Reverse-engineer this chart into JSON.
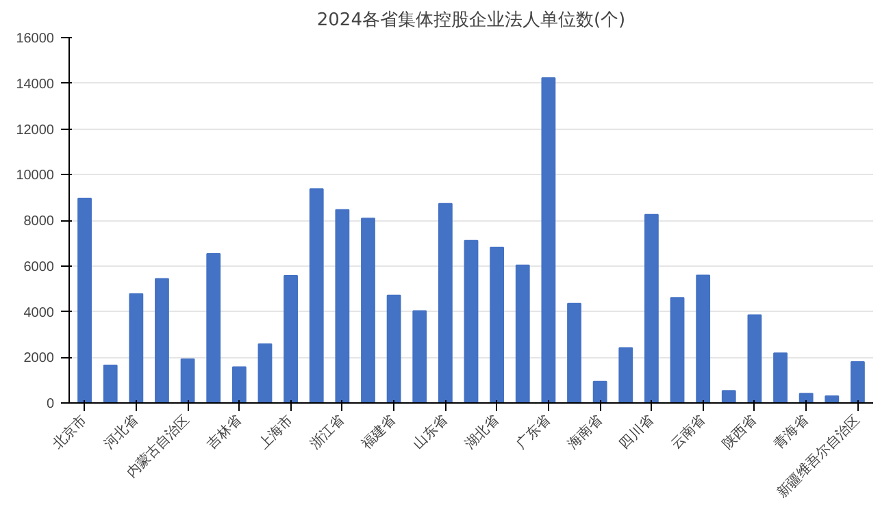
{
  "chart_data": {
    "type": "bar",
    "title": "2024各省集体控股企业法人单位数(个)",
    "categories": [
      "北京市",
      null,
      "河北省",
      null,
      "内蒙古自治区",
      null,
      "吉林省",
      null,
      "上海市",
      null,
      "浙江省",
      null,
      "福建省",
      null,
      "山东省",
      null,
      "湖北省",
      null,
      "广东省",
      null,
      "海南省",
      null,
      "四川省",
      null,
      "云南省",
      null,
      "陕西省",
      null,
      "青海省",
      null,
      "新疆维吾尔自治区"
    ],
    "values": [
      8960,
      1650,
      4780,
      5440,
      1920,
      6530,
      1570,
      2580,
      5570,
      9370,
      8460,
      8080,
      4710,
      4030,
      8730,
      7110,
      6810,
      6030,
      14230,
      4350,
      940,
      2410,
      8250,
      4610,
      5590,
      530,
      3850,
      2180,
      410,
      300,
      1800
    ],
    "color": "#4472c4",
    "ylim": [
      0,
      16000
    ],
    "yticks": [
      0,
      2000,
      4000,
      6000,
      8000,
      10000,
      12000,
      14000,
      16000
    ],
    "grid": "y"
  }
}
